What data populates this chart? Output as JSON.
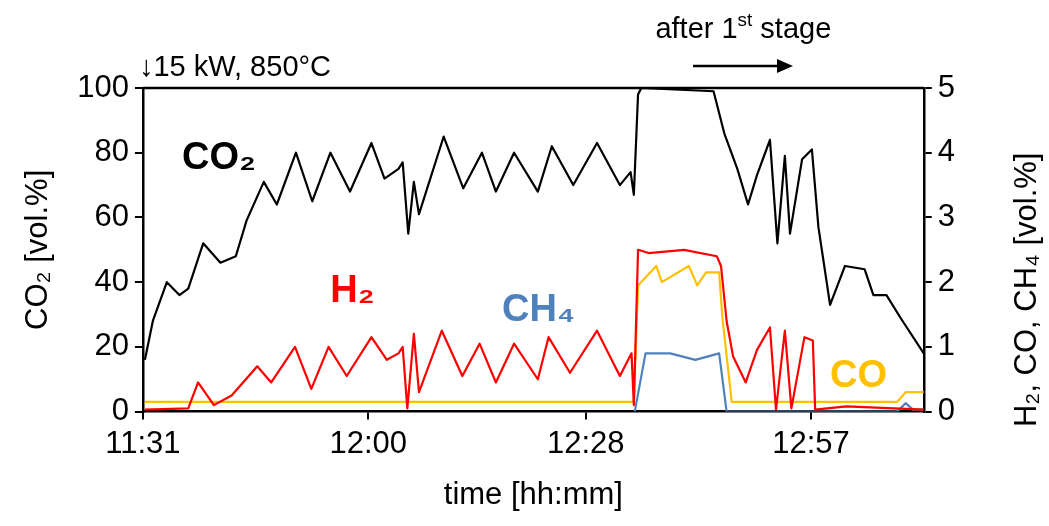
{
  "chart_data": {
    "type": "line",
    "xlabel": "time [hh:mm]",
    "ylabel": "CO₂ [vol.%]",
    "y2label": "H₂, CO, CH₄ [vol.%]",
    "annotations": [
      "↓15 kW, 850°C",
      "after 1$^{st}$ stage"
    ],
    "xlim": [
      11.5167,
      13.192
    ],
    "xticks": [
      {
        "value": 11.5167,
        "label": "11:31"
      },
      {
        "value": 12,
        "label": "12:00"
      },
      {
        "value": 12.4667,
        "label": "12:28"
      },
      {
        "value": 12.95,
        "label": "12:57"
      }
    ],
    "ylim": [
      0,
      100
    ],
    "yticks": [
      0,
      20,
      40,
      60,
      80,
      100
    ],
    "y2lim": [
      0,
      5
    ],
    "y2ticks": [
      0,
      1,
      2,
      3,
      4,
      5
    ],
    "grid": false,
    "legend": false,
    "marker": "none",
    "line_style": "solid",
    "series": [
      {
        "name": "CO₂",
        "color": "#000000",
        "x": [
          11.521,
          11.538,
          11.568,
          11.595,
          11.614,
          11.646,
          11.683,
          11.716,
          11.739,
          11.776,
          11.804,
          11.845,
          11.88,
          11.919,
          11.961,
          12.007,
          12.035,
          12.065,
          12.074,
          12.086,
          12.098,
          12.109,
          12.162,
          12.204,
          12.244,
          12.274,
          12.313,
          12.364,
          12.394,
          12.44,
          12.491,
          12.54,
          12.563,
          12.57,
          12.579,
          12.586,
          12.741,
          12.764,
          12.792,
          12.815,
          12.834,
          12.862,
          12.878,
          12.894,
          12.905,
          12.931,
          12.952,
          12.966,
          12.991,
          13.023,
          13.065,
          13.084,
          13.112,
          13.142,
          13.192
        ],
        "values": [
          16,
          28,
          40,
          36,
          38,
          52,
          46,
          48,
          59,
          71,
          64,
          80,
          65,
          80,
          68,
          83,
          72,
          75,
          77,
          55,
          71,
          61,
          85,
          69,
          80,
          68,
          80,
          68,
          82,
          70,
          83,
          70,
          74,
          67,
          98,
          100,
          99,
          86,
          75,
          64,
          73,
          84,
          52,
          79,
          55,
          78,
          81,
          57,
          33,
          45,
          44,
          36,
          36,
          29,
          18
        ]
      },
      {
        "name": "H₂",
        "color": "#ff0000",
        "axis": "y2",
        "x": [
          11.521,
          11.614,
          11.635,
          11.669,
          11.707,
          11.762,
          11.792,
          11.843,
          11.878,
          11.915,
          11.954,
          12.007,
          12.04,
          12.065,
          12.074,
          12.084,
          12.098,
          12.109,
          12.158,
          12.202,
          12.239,
          12.274,
          12.313,
          12.364,
          12.387,
          12.433,
          12.491,
          12.54,
          12.565,
          12.57,
          12.579,
          12.602,
          12.678,
          12.748,
          12.757,
          12.769,
          12.783,
          12.81,
          12.834,
          12.862,
          12.875,
          12.894,
          12.908,
          12.936,
          12.954,
          12.959,
          13.026,
          13.192
        ],
        "values": [
          0.03,
          0.05,
          0.45,
          0.1,
          0.25,
          0.7,
          0.45,
          1.0,
          0.35,
          1.0,
          0.55,
          1.15,
          0.8,
          0.9,
          1.0,
          0.05,
          1.2,
          0.3,
          1.25,
          0.55,
          1.05,
          0.45,
          1.05,
          0.5,
          1.15,
          0.6,
          1.25,
          0.55,
          0.9,
          0.1,
          2.5,
          2.45,
          2.5,
          2.4,
          2.25,
          1.4,
          0.85,
          0.45,
          0.95,
          1.3,
          0.03,
          1.25,
          0.05,
          1.15,
          1.1,
          0.03,
          0.08,
          0.03
        ]
      },
      {
        "name": "CH₄",
        "color": "#4f81bd",
        "axis": "y2",
        "x": [
          12.572,
          12.595,
          12.625,
          12.648,
          12.702,
          12.753,
          12.769,
          13.135,
          13.153,
          13.169,
          13.192
        ],
        "values": [
          0,
          0.9,
          0.9,
          0.9,
          0.8,
          0.9,
          0,
          0,
          0.13,
          0.03,
          0.03
        ]
      },
      {
        "name": "CO",
        "color": "#ffc000",
        "axis": "y2",
        "x": [
          11.521,
          12.57,
          12.579,
          12.618,
          12.63,
          12.688,
          12.706,
          12.725,
          12.753,
          12.76,
          12.78,
          13.135,
          13.153,
          13.192
        ],
        "values": [
          0.15,
          0.15,
          1.95,
          2.25,
          2.0,
          2.25,
          1.95,
          2.15,
          2.15,
          1.45,
          0.15,
          0.15,
          0.3,
          0.3
        ]
      }
    ]
  }
}
